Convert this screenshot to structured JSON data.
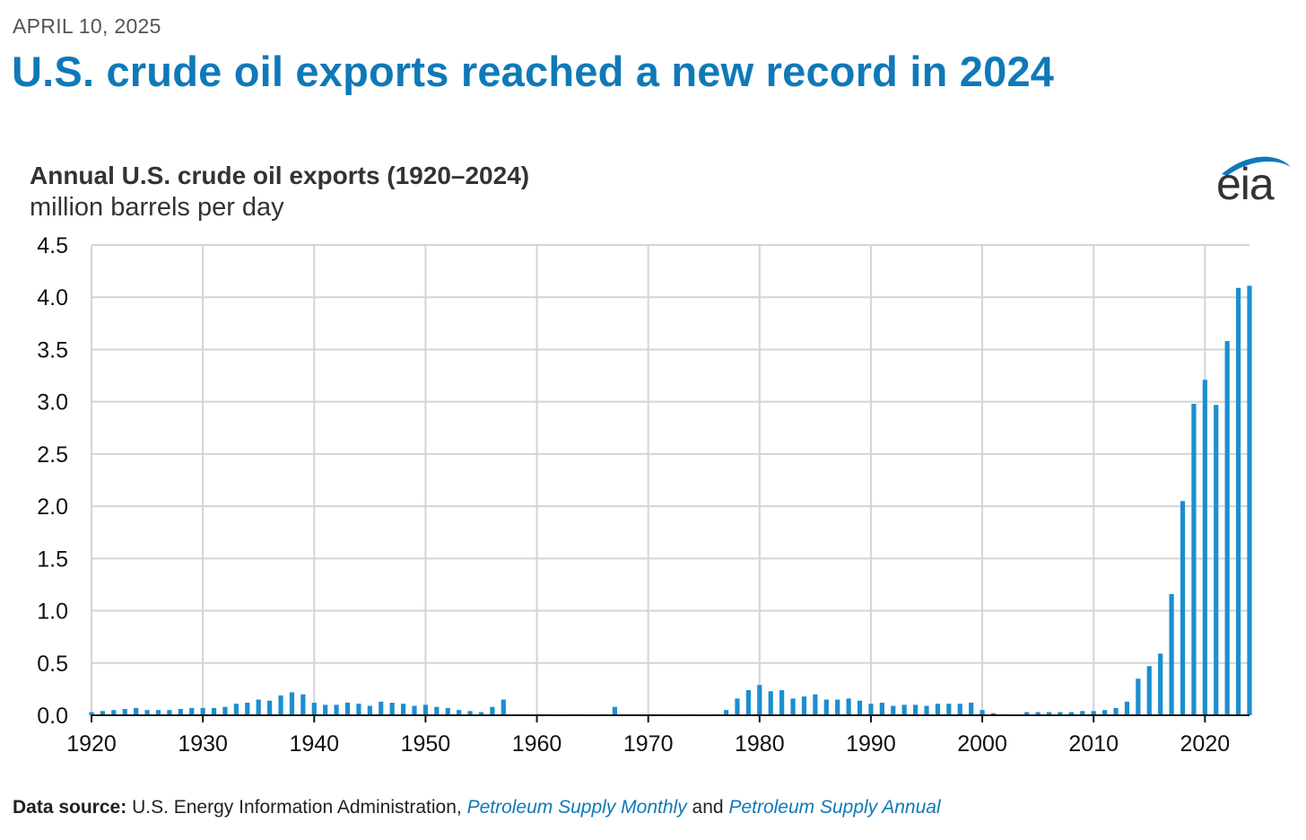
{
  "date": "APRIL 10, 2025",
  "headline": "U.S. crude oil exports reached a new record in 2024",
  "logo": {
    "text": "eia",
    "icon": "eia-swoosh-logo",
    "color": "#0f79b8"
  },
  "source": {
    "label": "Data source:",
    "org": "U.S. Energy Information Administration,",
    "pub1": "Petroleum Supply Monthly",
    "and": "and",
    "pub2": "Petroleum Supply Annual"
  },
  "chart_data": {
    "type": "bar",
    "title": "Annual U.S. crude oil exports (1920–2024)",
    "ylabel": "million barrels per day",
    "xlabel": "",
    "ylim": [
      0,
      4.5
    ],
    "yticks": [
      "0.0",
      "0.5",
      "1.0",
      "1.5",
      "2.0",
      "2.5",
      "3.0",
      "3.5",
      "4.0",
      "4.5"
    ],
    "xticks": [
      "1920",
      "1930",
      "1940",
      "1950",
      "1960",
      "1970",
      "1980",
      "1990",
      "2000",
      "2010",
      "2020"
    ],
    "grid": true,
    "bar_color": "#1a8fd0",
    "categories": [
      1920,
      1921,
      1922,
      1923,
      1924,
      1925,
      1926,
      1927,
      1928,
      1929,
      1930,
      1931,
      1932,
      1933,
      1934,
      1935,
      1936,
      1937,
      1938,
      1939,
      1940,
      1941,
      1942,
      1943,
      1944,
      1945,
      1946,
      1947,
      1948,
      1949,
      1950,
      1951,
      1952,
      1953,
      1954,
      1955,
      1956,
      1957,
      1958,
      1959,
      1960,
      1961,
      1962,
      1963,
      1964,
      1965,
      1966,
      1967,
      1968,
      1969,
      1970,
      1971,
      1972,
      1973,
      1974,
      1975,
      1976,
      1977,
      1978,
      1979,
      1980,
      1981,
      1982,
      1983,
      1984,
      1985,
      1986,
      1987,
      1988,
      1989,
      1990,
      1991,
      1992,
      1993,
      1994,
      1995,
      1996,
      1997,
      1998,
      1999,
      2000,
      2001,
      2002,
      2003,
      2004,
      2005,
      2006,
      2007,
      2008,
      2009,
      2010,
      2011,
      2012,
      2013,
      2014,
      2015,
      2016,
      2017,
      2018,
      2019,
      2020,
      2021,
      2022,
      2023,
      2024
    ],
    "values": [
      0.03,
      0.04,
      0.05,
      0.06,
      0.07,
      0.05,
      0.05,
      0.05,
      0.06,
      0.07,
      0.07,
      0.07,
      0.08,
      0.11,
      0.12,
      0.15,
      0.14,
      0.19,
      0.22,
      0.2,
      0.12,
      0.1,
      0.1,
      0.12,
      0.11,
      0.09,
      0.13,
      0.12,
      0.11,
      0.09,
      0.1,
      0.08,
      0.07,
      0.05,
      0.04,
      0.03,
      0.08,
      0.15,
      0.01,
      0.01,
      0.01,
      0.01,
      0.01,
      0.01,
      0.01,
      0.01,
      0.01,
      0.08,
      0.01,
      0.01,
      0.01,
      0.01,
      0.01,
      0.01,
      0.01,
      0.01,
      0.01,
      0.05,
      0.16,
      0.24,
      0.29,
      0.23,
      0.24,
      0.16,
      0.18,
      0.2,
      0.15,
      0.15,
      0.16,
      0.14,
      0.11,
      0.12,
      0.09,
      0.1,
      0.1,
      0.09,
      0.11,
      0.11,
      0.11,
      0.12,
      0.05,
      0.02,
      0.01,
      0.01,
      0.03,
      0.03,
      0.03,
      0.03,
      0.03,
      0.04,
      0.04,
      0.05,
      0.07,
      0.13,
      0.35,
      0.47,
      0.59,
      1.16,
      2.05,
      2.98,
      3.21,
      2.97,
      3.58,
      4.09,
      4.11
    ]
  }
}
